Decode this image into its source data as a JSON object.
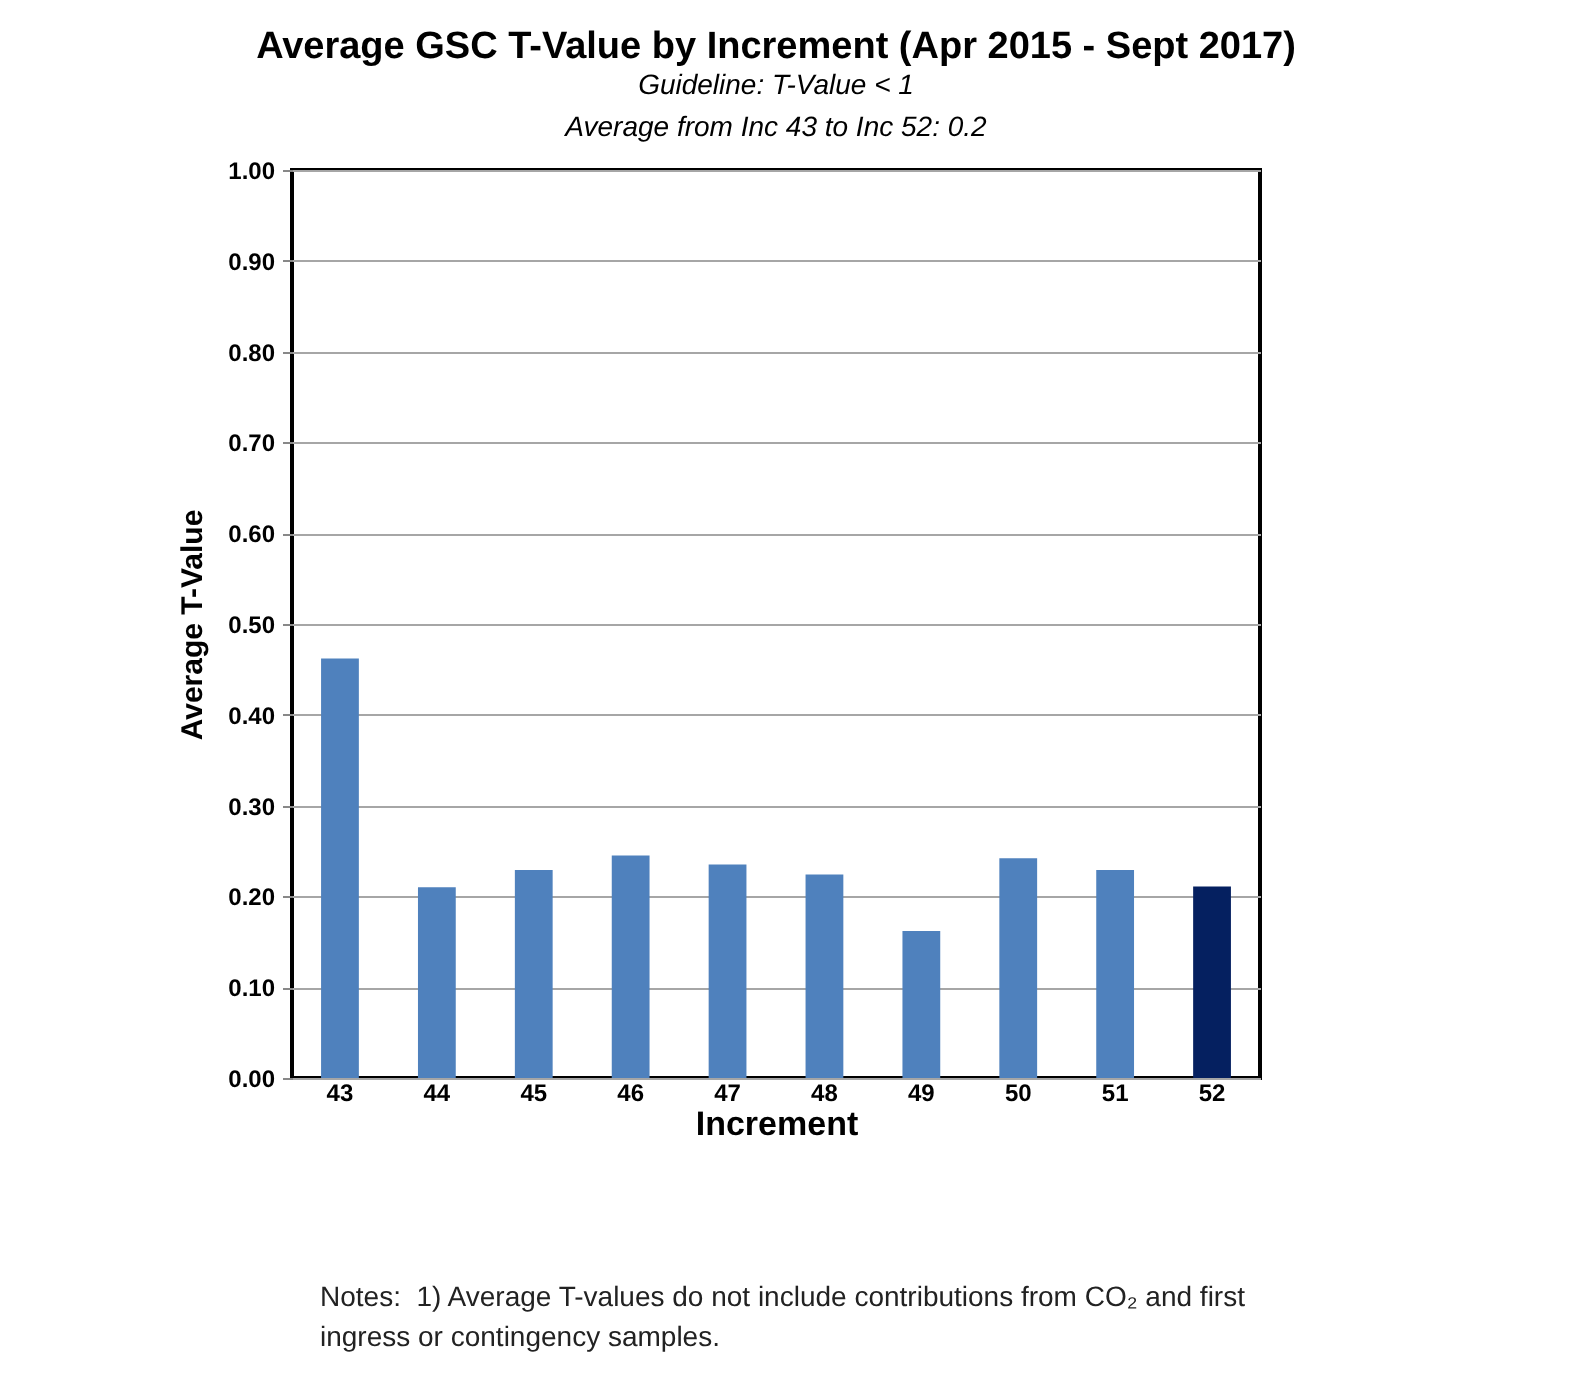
{
  "chart_data": {
    "type": "bar",
    "title": "Average GSC T-Value by Increment (Apr 2015 - Sept 2017)",
    "subtitle": "Guideline: T-Value < 1\nAverage from Inc 43 to Inc 52:    0.2",
    "xlabel": "Increment",
    "ylabel": "Average T-Value",
    "categories": [
      "43",
      "44",
      "45",
      "46",
      "47",
      "48",
      "49",
      "50",
      "51",
      "52"
    ],
    "values": [
      0.462,
      0.21,
      0.229,
      0.245,
      0.235,
      0.224,
      0.162,
      0.242,
      0.229,
      0.211
    ],
    "colors": [
      "#4f81bd",
      "#4f81bd",
      "#4f81bd",
      "#4f81bd",
      "#4f81bd",
      "#4f81bd",
      "#4f81bd",
      "#4f81bd",
      "#4f81bd",
      "#052060"
    ],
    "ylim": [
      0,
      1
    ],
    "yticks": [
      {
        "value": 0,
        "label": "0.00"
      },
      {
        "value": 0.1,
        "label": "0.10"
      },
      {
        "value": 0.2,
        "label": "0.20"
      },
      {
        "value": 0.3,
        "label": "0.30"
      },
      {
        "value": 0.4,
        "label": "0.40"
      },
      {
        "value": 0.5,
        "label": "0.50"
      },
      {
        "value": 0.6,
        "label": "0.60"
      },
      {
        "value": 0.7,
        "label": "0.70"
      },
      {
        "value": 0.8,
        "label": "0.80"
      },
      {
        "value": 0.9,
        "label": "0.90"
      },
      {
        "value": 1,
        "label": "1.00"
      }
    ],
    "grid": "y",
    "annotations": [
      "Notes:  1) Average T-values do not include contributions from CO₂ and first ingress or contingency samples."
    ]
  }
}
